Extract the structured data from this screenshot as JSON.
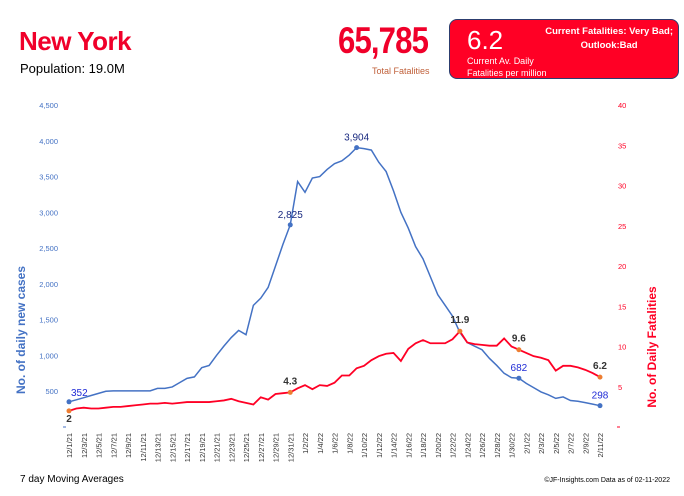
{
  "header": {
    "state": "New York",
    "population": "Population: 19.0M",
    "total_fatalities": "65,785",
    "total_fatalities_label": "Total Fatalities",
    "current_rate": "6.2",
    "current_rate_label_1": "Current Av. Daily",
    "current_rate_label_2": "Fatalities per million",
    "status_1": "Current Fatalities: Very Bad;",
    "status_2": "Outlook:Bad"
  },
  "footer": {
    "note": "7 day Moving Averages",
    "copyright": "©JF-Insights.com  Data as of 02-11-2022"
  },
  "colors": {
    "cases": "#4472c4",
    "deaths": "#ff0025",
    "marker_deaths": "#ed7d31",
    "accent": "#f0002a"
  },
  "chart_data": {
    "type": "line",
    "x": [
      "12/1/21",
      "12/2/21",
      "12/3/21",
      "12/4/21",
      "12/5/21",
      "12/6/21",
      "12/7/21",
      "12/8/21",
      "12/9/21",
      "12/10/21",
      "12/11/21",
      "12/12/21",
      "12/13/21",
      "12/14/21",
      "12/15/21",
      "12/16/21",
      "12/17/21",
      "12/18/21",
      "12/19/21",
      "12/20/21",
      "12/21/21",
      "12/22/21",
      "12/23/21",
      "12/24/21",
      "12/25/21",
      "12/26/21",
      "12/27/21",
      "12/28/21",
      "12/29/21",
      "12/30/21",
      "12/31/21",
      "1/1/22",
      "1/2/22",
      "1/3/22",
      "1/4/22",
      "1/5/22",
      "1/6/22",
      "1/7/22",
      "1/8/22",
      "1/9/22",
      "1/10/22",
      "1/11/22",
      "1/12/22",
      "1/13/22",
      "1/14/22",
      "1/15/22",
      "1/16/22",
      "1/17/22",
      "1/18/22",
      "1/19/22",
      "1/20/22",
      "1/21/22",
      "1/22/22",
      "1/23/22",
      "1/24/22",
      "1/25/22",
      "1/26/22",
      "1/27/22",
      "1/28/22",
      "1/29/22",
      "1/30/22",
      "1/31/22",
      "2/1/22",
      "2/2/22",
      "2/3/22",
      "2/4/22",
      "2/5/22",
      "2/6/22",
      "2/7/22",
      "2/8/22",
      "2/9/22",
      "2/10/22",
      "2/11/22"
    ],
    "series": [
      {
        "name": "No. of daily new  cases",
        "axis": "left",
        "values": [
          352,
          380,
          410,
          440,
          470,
          500,
          505,
          505,
          505,
          505,
          505,
          505,
          540,
          540,
          560,
          620,
          680,
          700,
          830,
          860,
          1000,
          1130,
          1250,
          1350,
          1290,
          1700,
          1800,
          1950,
          2250,
          2550,
          2825,
          3430,
          3280,
          3480,
          3500,
          3600,
          3680,
          3720,
          3800,
          3904,
          3890,
          3870,
          3700,
          3570,
          3300,
          3000,
          2780,
          2520,
          2350,
          2100,
          1850,
          1700,
          1550,
          1320,
          1180,
          1130,
          1080,
          960,
          860,
          750,
          690,
          682,
          610,
          550,
          490,
          450,
          400,
          420,
          370,
          360,
          340,
          320,
          298
        ],
        "labels": [
          {
            "index": 0,
            "text": "352"
          },
          {
            "index": 30,
            "text": "2,825"
          },
          {
            "index": 39,
            "text": "3,904"
          },
          {
            "index": 61,
            "text": "682"
          },
          {
            "index": 72,
            "text": "298"
          }
        ]
      },
      {
        "name": "No. of Daily Fatalities",
        "axis": "right",
        "values": [
          2.0,
          2.3,
          2.4,
          2.3,
          2.3,
          2.4,
          2.5,
          2.5,
          2.6,
          2.7,
          2.8,
          2.9,
          2.9,
          3.0,
          2.9,
          3.0,
          3.1,
          3.1,
          3.1,
          3.1,
          3.2,
          3.3,
          3.5,
          3.2,
          3.0,
          2.8,
          3.7,
          3.4,
          4.1,
          4.2,
          4.3,
          4.8,
          5.2,
          4.7,
          5.2,
          5.1,
          5.5,
          6.4,
          6.4,
          7.3,
          7.6,
          8.3,
          8.8,
          9.1,
          9.2,
          8.2,
          9.7,
          10.4,
          10.8,
          10.4,
          10.4,
          10.4,
          10.9,
          11.9,
          10.5,
          10.3,
          10.2,
          10.1,
          10.1,
          11.0,
          10.0,
          9.6,
          9.2,
          8.8,
          8.6,
          8.3,
          7.0,
          7.6,
          7.6,
          7.4,
          7.1,
          6.7,
          6.2
        ],
        "labels": [
          {
            "index": 0,
            "text": "2"
          },
          {
            "index": 30,
            "text": "4.3"
          },
          {
            "index": 53,
            "text": "11.9"
          },
          {
            "index": 61,
            "text": "9.6"
          },
          {
            "index": 72,
            "text": "6.2"
          }
        ]
      }
    ],
    "ylabel": "No. of daily new  cases",
    "y2label": "No. of Daily Fatalities",
    "ylim": [
      0,
      4500
    ],
    "y2lim": [
      0,
      40
    ],
    "yticks": [
      "",
      "500",
      "1,000",
      "1,500",
      "2,000",
      "2,500",
      "3,000",
      "3,500",
      "4,000",
      "4,500"
    ],
    "y2ticks": [
      "",
      "5",
      "10",
      "15",
      "20",
      "25",
      "30",
      "35",
      "40"
    ],
    "grid": false
  }
}
